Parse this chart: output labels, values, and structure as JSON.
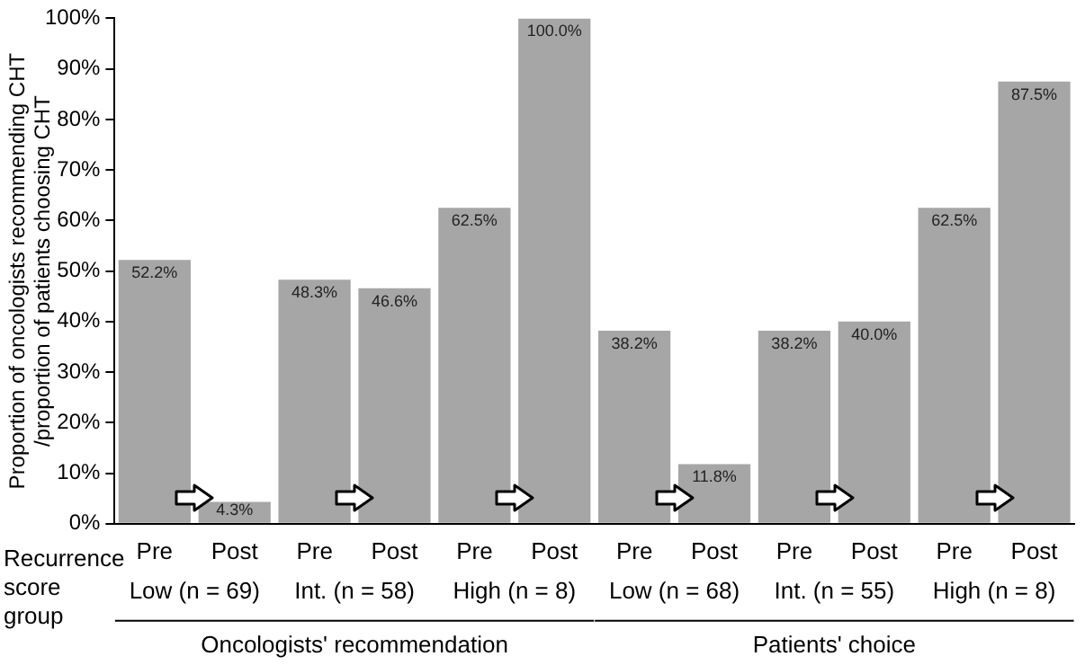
{
  "chart_data": {
    "type": "bar",
    "ylabel": "Proportion of oncologists recommending CHT /proportion of patients choosing CHT",
    "xlabel": "Recurrence score group",
    "categories": [
      "Pre",
      "Post",
      "Pre",
      "Post",
      "Pre",
      "Post",
      "Pre",
      "Post",
      "Pre",
      "Post",
      "Pre",
      "Post"
    ],
    "values": [
      52.2,
      4.3,
      48.3,
      46.6,
      62.5,
      100.0,
      38.2,
      11.8,
      38.2,
      40.0,
      62.5,
      87.5
    ],
    "value_labels": [
      "52.2%",
      "4.3%",
      "48.3%",
      "46.6%",
      "62.5%",
      "100.0%",
      "38.2%",
      "11.8%",
      "38.2%",
      "40.0%",
      "62.5%",
      "87.5%"
    ],
    "color": "#a6a6a6",
    "ylim": [
      0,
      100
    ],
    "yticks": [
      {
        "value": 0,
        "label": "0%"
      },
      {
        "value": 10,
        "label": "10%"
      },
      {
        "value": 20,
        "label": "20%"
      },
      {
        "value": 30,
        "label": "30%"
      },
      {
        "value": 40,
        "label": "40%"
      },
      {
        "value": 50,
        "label": "50%"
      },
      {
        "value": 60,
        "label": "60%"
      },
      {
        "value": 70,
        "label": "70%"
      },
      {
        "value": 80,
        "label": "80%"
      },
      {
        "value": 90,
        "label": "90%"
      },
      {
        "value": 100,
        "label": "100%"
      }
    ],
    "annotations": [
      "Low (n = 69)",
      "Int. (n = 58)",
      "High (n = 8)",
      "Low (n = 68)",
      "Int. (n = 55)",
      "High (n = 8)",
      "Oncologists' recommendation",
      "Patients' choice"
    ],
    "grid": false,
    "legend": false
  }
}
